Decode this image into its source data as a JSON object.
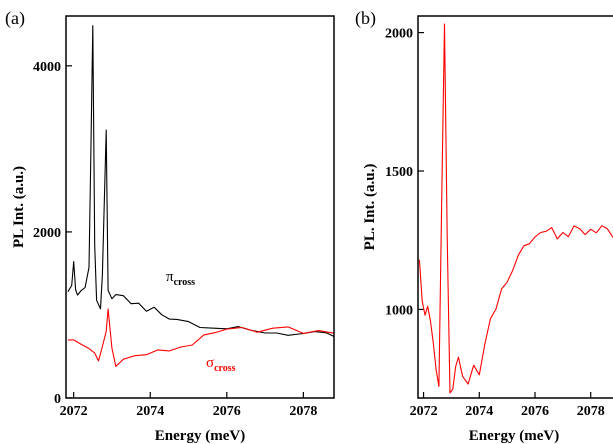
{
  "chart_data": [
    {
      "panel": "(a)",
      "type": "line",
      "xlabel": "Energy (meV)",
      "ylabel": "PL Int. (a.u.)",
      "xlim": [
        2071.8,
        2078.8
      ],
      "ylim": [
        0,
        4600
      ],
      "xticks": [
        "2072",
        "2074",
        "2076",
        "2078"
      ],
      "yticks": [
        "0",
        "2000",
        "4000"
      ],
      "series": [
        {
          "name": "π",
          "subscript": "cross",
          "color": "#000000",
          "x": [
            2071.85,
            2071.95,
            2072.0,
            2072.05,
            2072.1,
            2072.2,
            2072.3,
            2072.4,
            2072.45,
            2072.5,
            2072.55,
            2072.6,
            2072.7,
            2072.75,
            2072.85,
            2072.9,
            2073.0,
            2073.1,
            2073.3,
            2073.5,
            2073.7,
            2073.9,
            2074.1,
            2074.3,
            2074.5,
            2074.7,
            2075.0,
            2075.3,
            2075.6,
            2076.0,
            2076.3,
            2076.6,
            2077.0,
            2077.3,
            2077.6,
            2078.0,
            2078.3,
            2078.6,
            2078.8
          ],
          "y": [
            1280,
            1320,
            1680,
            1300,
            1250,
            1300,
            1320,
            1600,
            3000,
            4480,
            1800,
            1150,
            1100,
            1450,
            3200,
            1300,
            1160,
            1250,
            1220,
            1150,
            1120,
            1040,
            1080,
            1010,
            980,
            960,
            920,
            890,
            870,
            840,
            820,
            800,
            800,
            790,
            780,
            770,
            760,
            750,
            740
          ]
        },
        {
          "name": "σ",
          "subscript": "cross",
          "color": "#ff0000",
          "x": [
            2071.85,
            2072.0,
            2072.2,
            2072.4,
            2072.55,
            2072.65,
            2072.75,
            2072.85,
            2072.9,
            2073.0,
            2073.1,
            2073.3,
            2073.6,
            2073.9,
            2074.2,
            2074.5,
            2074.8,
            2075.1,
            2075.4,
            2075.7,
            2076.0,
            2076.4,
            2076.8,
            2077.2,
            2077.6,
            2078.0,
            2078.4,
            2078.8
          ],
          "y": [
            700,
            680,
            640,
            600,
            560,
            420,
            600,
            800,
            1070,
            600,
            420,
            460,
            500,
            530,
            550,
            580,
            620,
            660,
            720,
            770,
            800,
            820,
            830,
            830,
            820,
            800,
            790,
            780
          ]
        }
      ]
    },
    {
      "panel": "(b)",
      "type": "line",
      "xlabel": "Energy (meV)",
      "ylabel": "PL. Int. (a.u.)",
      "xlim": [
        2071.8,
        2078.8
      ],
      "ylim": [
        680,
        2060
      ],
      "xticks": [
        "2072",
        "2074",
        "2076",
        "2078"
      ],
      "yticks": [
        "1000",
        "1500",
        "2000"
      ],
      "series": [
        {
          "name": "",
          "color": "#ff0000",
          "x": [
            2071.85,
            2071.95,
            2072.05,
            2072.15,
            2072.25,
            2072.35,
            2072.45,
            2072.55,
            2072.65,
            2072.75,
            2072.85,
            2072.95,
            2073.05,
            2073.15,
            2073.25,
            2073.4,
            2073.6,
            2073.8,
            2074.0,
            2074.2,
            2074.4,
            2074.6,
            2074.8,
            2075.0,
            2075.2,
            2075.4,
            2075.6,
            2075.8,
            2076.0,
            2076.2,
            2076.4,
            2076.6,
            2076.8,
            2077.0,
            2077.2,
            2077.4,
            2077.6,
            2077.8,
            2078.0,
            2078.2,
            2078.4,
            2078.6,
            2078.8
          ],
          "y": [
            1180,
            1020,
            990,
            1010,
            960,
            880,
            780,
            730,
            1400,
            2030,
            1250,
            690,
            720,
            780,
            820,
            760,
            720,
            800,
            760,
            880,
            960,
            1000,
            1070,
            1100,
            1150,
            1200,
            1230,
            1250,
            1270,
            1280,
            1270,
            1290,
            1260,
            1280,
            1270,
            1300,
            1280,
            1260,
            1290,
            1270,
            1300,
            1280,
            1260
          ]
        }
      ]
    }
  ]
}
